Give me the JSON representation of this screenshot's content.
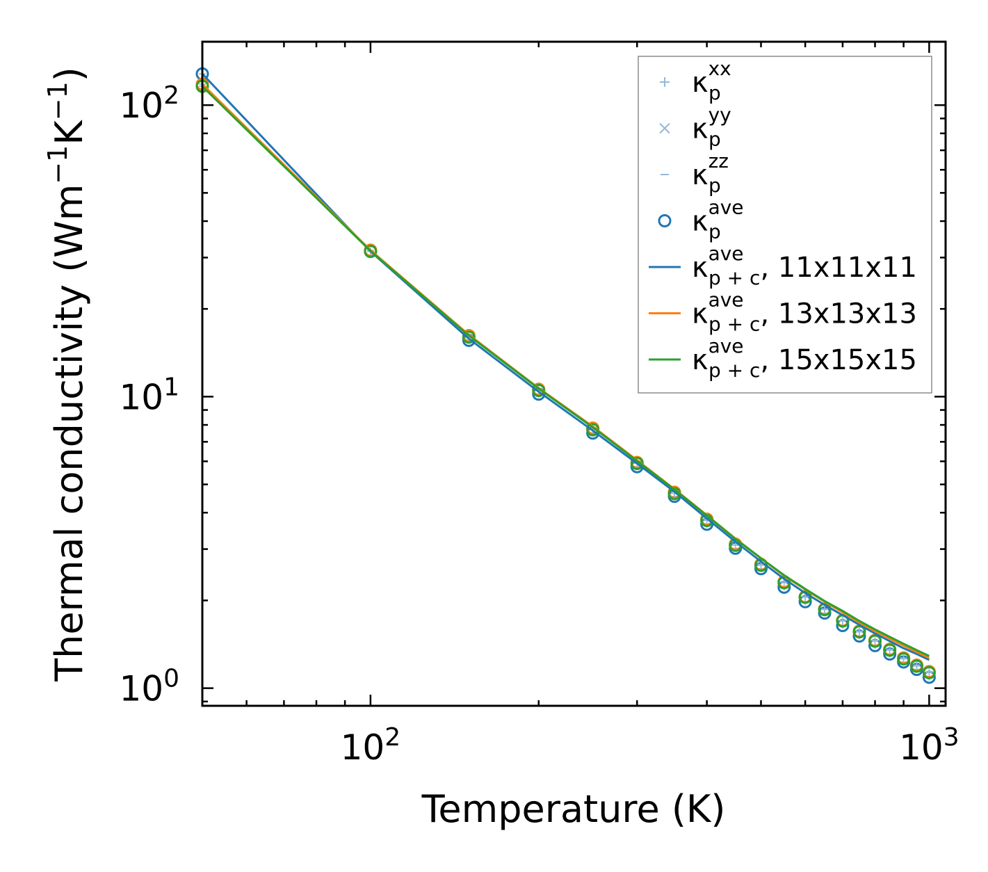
{
  "chart_data": {
    "type": "line",
    "xlabel": "Temperature (K)",
    "ylabel_main": "Thermal conductivity (Wm",
    "ylabel_sup1": "−1",
    "ylabel_mid": "K",
    "ylabel_sup2": "−1",
    "ylabel_end": ")",
    "xscale": "log",
    "yscale": "log",
    "xlim": [
      50,
      1070
    ],
    "ylim": [
      0.87,
      165
    ],
    "xticks": [
      {
        "value": 100,
        "base": "10",
        "exp": "2"
      },
      {
        "value": 1000,
        "base": "10",
        "exp": "3"
      }
    ],
    "yticks": [
      {
        "value": 1,
        "base": "10",
        "exp": "0"
      },
      {
        "value": 10,
        "base": "10",
        "exp": "1"
      },
      {
        "value": 100,
        "base": "10",
        "exp": "2"
      }
    ],
    "x": [
      50,
      100,
      150,
      200,
      250,
      300,
      350,
      400,
      450,
      500,
      550,
      600,
      650,
      700,
      750,
      800,
      850,
      900,
      950,
      1000
    ],
    "series": [
      {
        "name": "κ_p^ave, 11x11x11",
        "kind": "markers",
        "color": "#1f77b4",
        "values": [
          128,
          31.5,
          15.6,
          10.2,
          7.5,
          5.75,
          4.55,
          3.65,
          3.02,
          2.57,
          2.22,
          1.98,
          1.81,
          1.64,
          1.51,
          1.4,
          1.31,
          1.23,
          1.16,
          1.09
        ]
      },
      {
        "name": "κ_p^ave, 13x13x13",
        "kind": "markers",
        "color": "#ff7f0e",
        "values": [
          118,
          31.8,
          16.2,
          10.6,
          7.8,
          5.95,
          4.7,
          3.8,
          3.12,
          2.66,
          2.32,
          2.06,
          1.87,
          1.71,
          1.57,
          1.46,
          1.36,
          1.27,
          1.2,
          1.14
        ]
      },
      {
        "name": "κ_p^ave, 15x15x15",
        "kind": "markers",
        "color": "#2ca02c",
        "values": [
          116,
          31.5,
          16.0,
          10.5,
          7.7,
          5.9,
          4.65,
          3.76,
          3.09,
          2.64,
          2.3,
          2.05,
          1.86,
          1.7,
          1.56,
          1.45,
          1.35,
          1.26,
          1.19,
          1.13
        ]
      },
      {
        "name": "κ_{p+c}^ave, 11x11x11",
        "kind": "line",
        "color": "#1f77b4",
        "values": [
          128,
          31.5,
          15.8,
          10.4,
          7.65,
          5.9,
          4.72,
          3.82,
          3.18,
          2.72,
          2.37,
          2.12,
          1.93,
          1.78,
          1.65,
          1.54,
          1.45,
          1.37,
          1.31,
          1.25
        ]
      },
      {
        "name": "κ_{p+c}^ave, 13x13x13",
        "kind": "line",
        "color": "#ff7f0e",
        "values": [
          118,
          31.8,
          16.3,
          10.7,
          7.9,
          6.05,
          4.82,
          3.92,
          3.26,
          2.79,
          2.43,
          2.18,
          1.98,
          1.82,
          1.68,
          1.57,
          1.48,
          1.4,
          1.33,
          1.27
        ]
      },
      {
        "name": "κ_{p+c}^ave, 15x15x15",
        "kind": "line",
        "color": "#2ca02c",
        "values": [
          116,
          31.6,
          16.2,
          10.65,
          7.85,
          6.02,
          4.8,
          3.91,
          3.25,
          2.79,
          2.44,
          2.19,
          1.99,
          1.84,
          1.7,
          1.59,
          1.5,
          1.42,
          1.35,
          1.29
        ]
      }
    ],
    "legend": {
      "position": "top-right",
      "entries": [
        {
          "sym": "κ",
          "sub": "p",
          "sup": "xx",
          "suffix": "",
          "marker": "plus",
          "color": "#95b8d6"
        },
        {
          "sym": "κ",
          "sub": "p",
          "sup": "yy",
          "suffix": "",
          "marker": "x",
          "color": "#95b8d6"
        },
        {
          "sym": "κ",
          "sub": "p",
          "sup": "zz",
          "suffix": "",
          "marker": "hline",
          "color": "#95b8d6"
        },
        {
          "sym": "κ",
          "sub": "p",
          "sup": "ave",
          "suffix": "",
          "marker": "circle",
          "color": "#1f77b4"
        },
        {
          "sym": "κ",
          "sub": "p + c",
          "sup": "ave",
          "suffix": ", 11x11x11",
          "marker": "line",
          "color": "#1f77b4"
        },
        {
          "sym": "κ",
          "sub": "p + c",
          "sup": "ave",
          "suffix": ", 13x13x13",
          "marker": "line",
          "color": "#ff7f0e"
        },
        {
          "sym": "κ",
          "sub": "p + c",
          "sup": "ave",
          "suffix": ", 15x15x15",
          "marker": "line",
          "color": "#2ca02c"
        }
      ]
    }
  }
}
